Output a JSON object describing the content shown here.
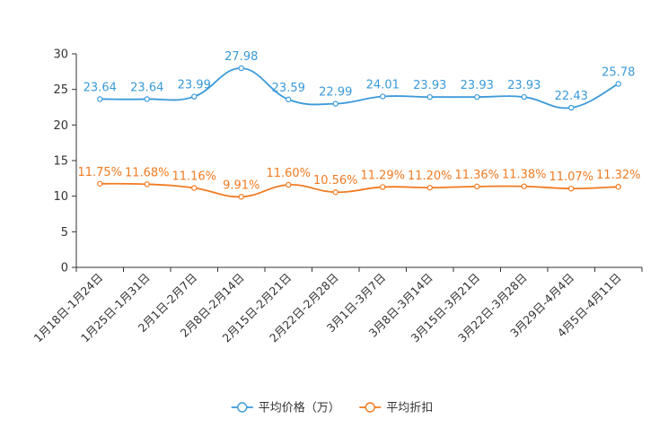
{
  "chart_data": {
    "type": "line",
    "title": "",
    "xlabel": "",
    "ylabel": "",
    "ylim": [
      0,
      30
    ],
    "yticks": [
      0,
      5,
      10,
      15,
      20,
      25,
      30
    ],
    "grid": false,
    "legend_position": "bottom-center",
    "categories": [
      "1月18日-1月24日",
      "1月25日-1月31日",
      "2月1日-2月7日",
      "2月8日-2月14日",
      "2月15日-2月21日",
      "2月22日-2月28日",
      "3月1日-3月7日",
      "3月8日-3月14日",
      "3月15日-3月21日",
      "3月22日-3月28日",
      "3月29日-4月4日",
      "4月5日-4月11日"
    ],
    "series": [
      {
        "name": "平均价格（万）",
        "color": "#3a9ad9",
        "values": [
          23.64,
          23.64,
          23.99,
          27.98,
          23.59,
          22.99,
          24.01,
          23.93,
          23.93,
          23.93,
          22.43,
          25.78
        ],
        "labels": [
          "23.64",
          "23.64",
          "23.99",
          "27.98",
          "23.59",
          "22.99",
          "24.01",
          "23.93",
          "23.93",
          "23.93",
          "22.43",
          "25.78"
        ]
      },
      {
        "name": "平均折扣",
        "color": "#f07b22",
        "values": [
          11.75,
          11.68,
          11.16,
          9.91,
          11.6,
          10.56,
          11.29,
          11.2,
          11.36,
          11.38,
          11.07,
          11.32
        ],
        "labels": [
          "11.75%",
          "11.68%",
          "11.16%",
          "9.91%",
          "11.60%",
          "10.56%",
          "11.29%",
          "11.20%",
          "11.36%",
          "11.38%",
          "11.07%",
          "11.32%"
        ]
      }
    ]
  }
}
